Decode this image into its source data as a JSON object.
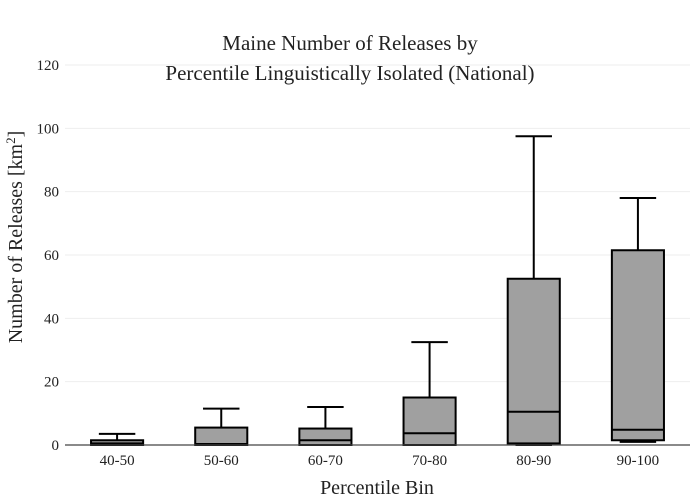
{
  "chart_data": {
    "type": "box",
    "title_lines": [
      "Maine Number of Releases by",
      "Percentile Linguistically Isolated (National)"
    ],
    "xlabel": "Percentile Bin",
    "ylabel_main": "Number of Releases  [km",
    "ylabel_sup": "2",
    "ylabel_close": "]",
    "ylim": [
      0,
      120
    ],
    "yticks": [
      "0",
      "20",
      "40",
      "60",
      "80",
      "100",
      "120"
    ],
    "grid": true,
    "box_color": "#a0a0a0",
    "categories": [
      "40-50",
      "50-60",
      "60-70",
      "70-80",
      "80-90",
      "90-100"
    ],
    "boxes": [
      {
        "category": "40-50",
        "min": 0,
        "q1": 0,
        "median": 0.5,
        "q3": 1.5,
        "max": 3.5
      },
      {
        "category": "50-60",
        "min": 0,
        "q1": 0,
        "median": 0.3,
        "q3": 5.5,
        "max": 11.5
      },
      {
        "category": "60-70",
        "min": 0,
        "q1": 0,
        "median": 1.5,
        "q3": 5.2,
        "max": 12
      },
      {
        "category": "70-80",
        "min": 0,
        "q1": 0,
        "median": 3.7,
        "q3": 15,
        "max": 32.5
      },
      {
        "category": "80-90",
        "min": 0,
        "q1": 0.5,
        "median": 10.5,
        "q3": 52.5,
        "max": 97.5
      },
      {
        "category": "90-100",
        "min": 1,
        "q1": 1.5,
        "median": 4.8,
        "q3": 61.5,
        "max": 78
      }
    ]
  }
}
